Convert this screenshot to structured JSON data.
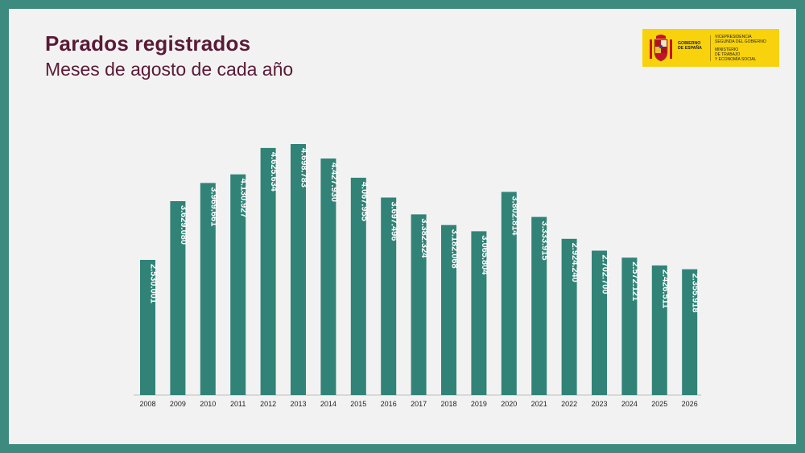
{
  "header": {
    "title": "Parados registrados",
    "subtitle": "Meses de agosto de cada año"
  },
  "logo": {
    "gov_line1": "GOBIERNO",
    "gov_line2": "DE ESPAÑA",
    "min_line1": "VICEPRESIDENCIA",
    "min_line2": "SEGUNDA DEL GOBIERNO",
    "min_line3": "MINISTERIO",
    "min_line4": "DE TRABAJO",
    "min_line5": "Y ECONOMÍA SOCIAL"
  },
  "colors": {
    "bar": "#318377",
    "background": "#f2f2f2",
    "frame": "#3d8a7e",
    "title": "#5a1a36",
    "logo_bg": "#f8d20c"
  },
  "chart_data": {
    "type": "bar",
    "title": "Parados registrados",
    "subtitle": "Meses de agosto de cada año",
    "categories": [
      "2008",
      "2009",
      "2010",
      "2011",
      "2012",
      "2013",
      "2014",
      "2015",
      "2016",
      "2017",
      "2018",
      "2019",
      "2020",
      "2021",
      "2022",
      "2023",
      "2024",
      "2025",
      "2026"
    ],
    "values": [
      2530001,
      3629080,
      3969661,
      4130927,
      4625634,
      4698783,
      4427930,
      4067955,
      3697496,
      3382324,
      3182068,
      3065804,
      3802814,
      3333915,
      2924240,
      2702700,
      2572121,
      2426511,
      2355918
    ],
    "labels": [
      "2.530.001",
      "3.629.080",
      "3.969.661",
      "4.130.927",
      "4.625.634",
      "4.698.783",
      "4.427.930",
      "4.067.955",
      "3.697.496",
      "3.382.324",
      "3.182.068",
      "3.065.804",
      "3.802.814",
      "3.333.915",
      "2.924.240",
      "2.702.700",
      "2.572.121",
      "2.426.511",
      "2.355.918"
    ],
    "xlabel": "",
    "ylabel": "",
    "ylim": [
      0,
      4698783
    ],
    "grid": false,
    "legend": "none"
  }
}
